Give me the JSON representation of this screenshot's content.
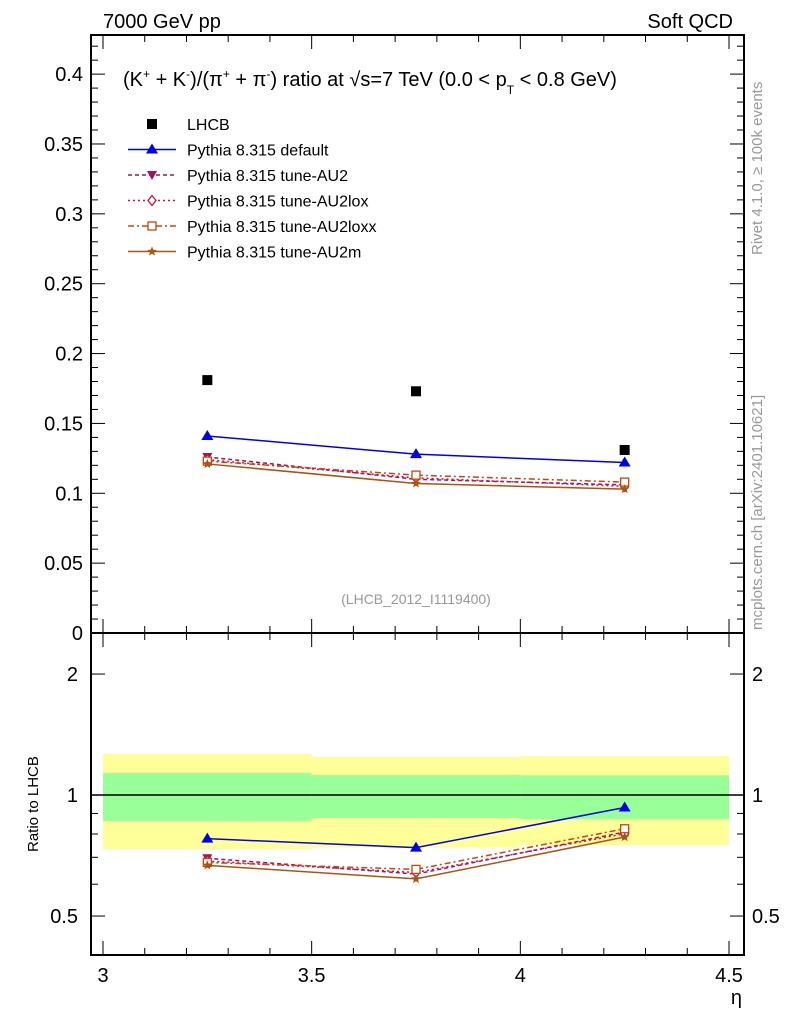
{
  "header": {
    "left": "7000 GeV pp",
    "right": "Soft QCD"
  },
  "side_labels": {
    "rivet": "Rivet 4.1.0, ≥ 100k events",
    "mcplots": "mcplots.cern.ch [arXiv:2401.10621]"
  },
  "chart_data": {
    "type": "scatter",
    "title_parts": {
      "a": "(K",
      "b": "+",
      "c": " + K",
      "d": "-",
      "e": ")/(π",
      "f": "+",
      "g": " + π",
      "h": "-",
      "i": ") ratio at √s=7 TeV (0.0 < p",
      "j": "T",
      "k": " < 0.8 GeV)"
    },
    "analysis_id": "(LHCB_2012_I1119400)",
    "xlabel": "η",
    "ratio_ylabel": "Ratio to LHCB",
    "xlim": [
      3,
      4.5
    ],
    "ylim": [
      0,
      0.428
    ],
    "ratio_ylim": [
      0.4,
      2.53
    ],
    "x_ticks": [
      "3",
      "3.5",
      "4",
      "4.5"
    ],
    "x_tick_values": [
      3,
      3.5,
      4,
      4.5
    ],
    "y_ticks": [
      "0",
      "0.05",
      "0.1",
      "0.15",
      "0.2",
      "0.25",
      "0.3",
      "0.35",
      "0.4"
    ],
    "y_tick_values": [
      0,
      0.05,
      0.1,
      0.15,
      0.2,
      0.25,
      0.3,
      0.35,
      0.4
    ],
    "ratio_ticks": [
      "0.5",
      "1",
      "2"
    ],
    "ratio_tick_values": [
      0.5,
      1,
      2
    ],
    "x": [
      3.25,
      3.75,
      4.25
    ],
    "bin_edges": [
      3.0,
      3.5,
      4.0,
      4.5
    ],
    "data": {
      "name": "LHCB",
      "values": [
        0.181,
        0.173,
        0.131
      ],
      "color": "#000000"
    },
    "ratio_bands": {
      "stat": {
        "low": [
          0.862,
          0.877,
          0.87
        ],
        "high": [
          1.134,
          1.121,
          1.12
        ],
        "color": "#99ff99"
      },
      "total": {
        "low": [
          0.734,
          0.74,
          0.751
        ],
        "high": [
          1.265,
          1.243,
          1.25
        ],
        "color": "#ffff99"
      }
    },
    "series": [
      {
        "name": "Pythia 8.315 default",
        "values": [
          0.141,
          0.128,
          0.122
        ],
        "color": "#0000ee",
        "marker": "triangle-up",
        "dash": ""
      },
      {
        "name": "Pythia 8.315 tune-AU2",
        "values": [
          0.126,
          0.11,
          0.106
        ],
        "color": "#aa1155",
        "marker": "triangle-down",
        "dash": "4,3"
      },
      {
        "name": "Pythia 8.315 tune-AU2lox",
        "values": [
          0.124,
          0.111,
          0.105
        ],
        "color": "#cc1144",
        "marker": "diamond-open",
        "dash": "2,3"
      },
      {
        "name": "Pythia 8.315 tune-AU2loxx",
        "values": [
          0.123,
          0.113,
          0.108
        ],
        "color": "#cc4411",
        "marker": "square-open",
        "dash": "6,3,2,3"
      },
      {
        "name": "Pythia 8.315 tune-AU2m",
        "values": [
          0.121,
          0.107,
          0.103
        ],
        "color": "#aa5511",
        "marker": "star",
        "dash": ""
      }
    ],
    "legend_position": "top-left",
    "grid": false
  }
}
